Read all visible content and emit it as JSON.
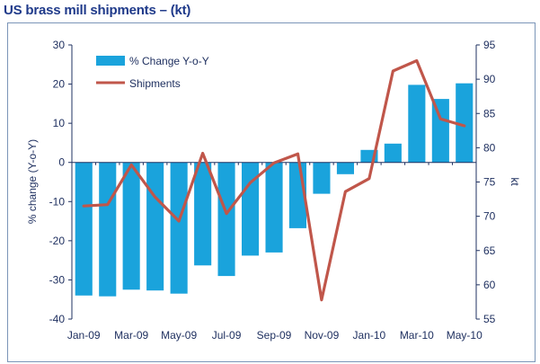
{
  "title": "US brass mill shipments – (kt)",
  "colors": {
    "bars": "#1aa3dc",
    "line": "#c0564a",
    "axis": "#1f3060",
    "border": "#7b95b8"
  },
  "chart_data": {
    "type": "bar+line",
    "x_tick_labels": [
      "Jan-09",
      "Mar-09",
      "May-09",
      "Jul-09",
      "Sep-09",
      "Nov-09",
      "Jan-10",
      "Mar-10",
      "May-10"
    ],
    "categories": [
      "Jan-09",
      "Feb-09",
      "Mar-09",
      "Apr-09",
      "May-09",
      "Jun-09",
      "Jul-09",
      "Aug-09",
      "Sep-09",
      "Oct-09",
      "Nov-09",
      "Dec-09",
      "Jan-10",
      "Feb-10",
      "Mar-10",
      "Apr-10",
      "May-10"
    ],
    "series": [
      {
        "name": "% Change Y-o-Y",
        "type": "bar",
        "axis": "left",
        "values": [
          -34,
          -34.2,
          -32.5,
          -32.7,
          -33.5,
          -26.3,
          -29,
          -23.8,
          -23,
          -16.8,
          -8,
          -3,
          3.2,
          4.8,
          19.8,
          16.2,
          20.2
        ]
      },
      {
        "name": "Shipments",
        "type": "line",
        "axis": "right",
        "values": [
          71.5,
          71.7,
          77.5,
          72.8,
          69.3,
          79.2,
          70.4,
          74.9,
          77.8,
          79.1,
          57.8,
          73.6,
          75.5,
          91.2,
          92.7,
          84.2,
          83.2
        ]
      }
    ],
    "y_left": {
      "label": "% change (Y-o-Y)",
      "lim": [
        -40,
        30
      ],
      "ticks": [
        30,
        20,
        10,
        0,
        -10,
        -20,
        -30,
        -40
      ]
    },
    "y_right": {
      "label": "kt",
      "lim": [
        55,
        95
      ],
      "ticks": [
        95,
        90,
        85,
        80,
        75,
        70,
        65,
        60,
        55
      ]
    },
    "legend_position": "top-left",
    "grid": false
  }
}
